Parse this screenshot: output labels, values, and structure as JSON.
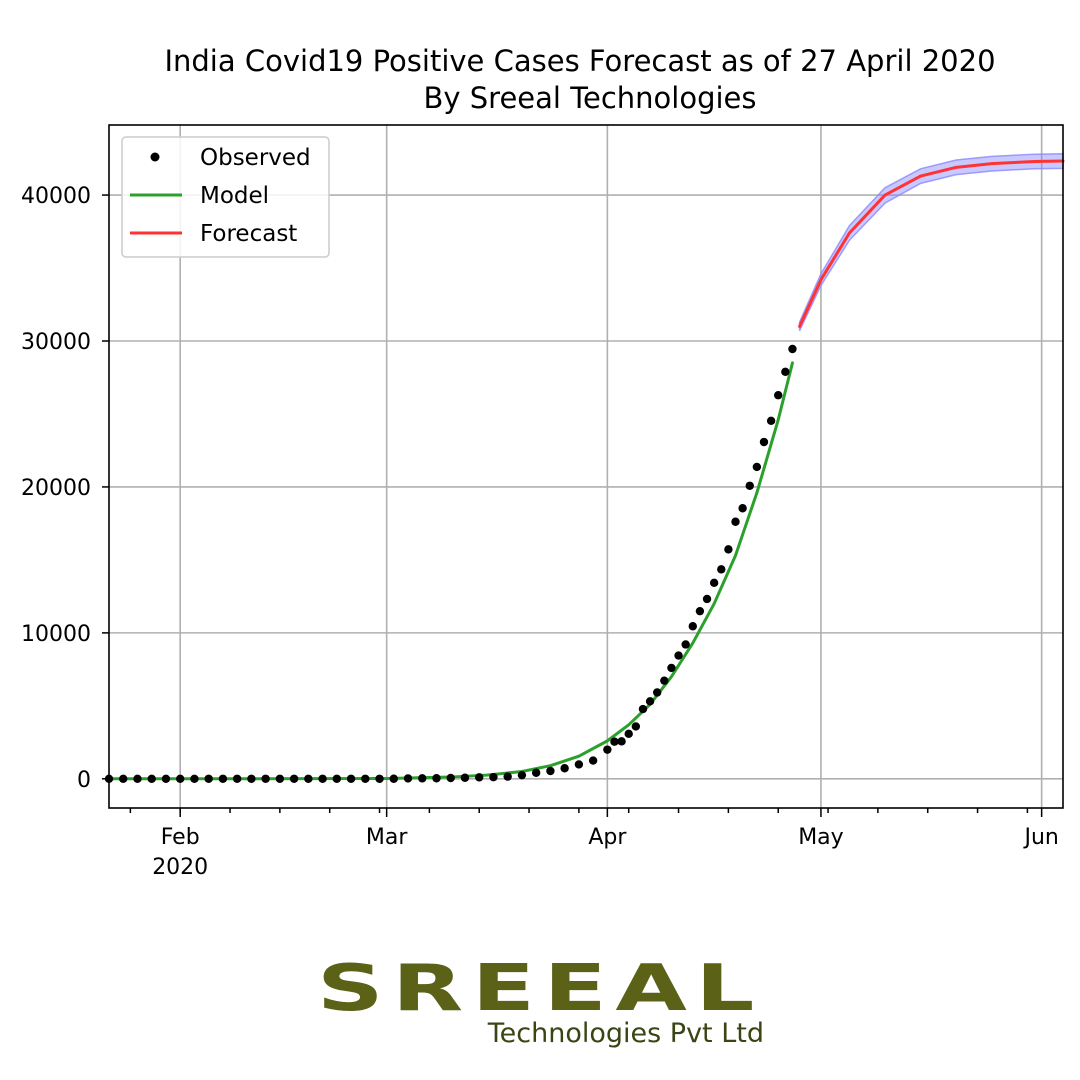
{
  "chart_data": {
    "type": "line",
    "title": "India Covid19 Positive Cases Forecast as of 27 April 2020",
    "subtitle": "By Sreeal Technologies",
    "xlabel": "",
    "ylabel": "",
    "x_range": [
      "2020-01-22",
      "2020-06-04"
    ],
    "ylim": [
      -2000,
      44800
    ],
    "x_ticks": [
      {
        "date": "2020-02-01",
        "label": "Feb",
        "sublabel": "2020"
      },
      {
        "date": "2020-03-01",
        "label": "Mar",
        "sublabel": ""
      },
      {
        "date": "2020-04-01",
        "label": "Apr",
        "sublabel": ""
      },
      {
        "date": "2020-05-01",
        "label": "May",
        "sublabel": ""
      },
      {
        "date": "2020-06-01",
        "label": "Jun",
        "sublabel": ""
      }
    ],
    "y_ticks": [
      0,
      10000,
      20000,
      30000,
      40000
    ],
    "y_tick_labels": [
      "0",
      "10000",
      "20000",
      "30000",
      "40000"
    ],
    "grid": true,
    "legend": {
      "position": "top-left",
      "entries": [
        {
          "label": "Observed",
          "marker": "dot",
          "color": "#000000"
        },
        {
          "label": "Model",
          "marker": "line",
          "color": "#2ca02c"
        },
        {
          "label": "Forecast",
          "marker": "line",
          "color": "#ff3333"
        }
      ]
    },
    "series": [
      {
        "name": "Observed",
        "kind": "scatter",
        "color": "#000000",
        "points": [
          [
            "2020-01-22",
            0
          ],
          [
            "2020-01-24",
            0
          ],
          [
            "2020-01-26",
            0
          ],
          [
            "2020-01-28",
            0
          ],
          [
            "2020-01-30",
            1
          ],
          [
            "2020-02-01",
            1
          ],
          [
            "2020-02-03",
            2
          ],
          [
            "2020-02-05",
            3
          ],
          [
            "2020-02-07",
            3
          ],
          [
            "2020-02-09",
            3
          ],
          [
            "2020-02-11",
            3
          ],
          [
            "2020-02-13",
            3
          ],
          [
            "2020-02-15",
            3
          ],
          [
            "2020-02-17",
            3
          ],
          [
            "2020-02-19",
            3
          ],
          [
            "2020-02-21",
            3
          ],
          [
            "2020-02-23",
            3
          ],
          [
            "2020-02-25",
            3
          ],
          [
            "2020-02-27",
            3
          ],
          [
            "2020-02-29",
            3
          ],
          [
            "2020-03-02",
            5
          ],
          [
            "2020-03-04",
            28
          ],
          [
            "2020-03-06",
            31
          ],
          [
            "2020-03-08",
            39
          ],
          [
            "2020-03-10",
            56
          ],
          [
            "2020-03-12",
            73
          ],
          [
            "2020-03-14",
            100
          ],
          [
            "2020-03-16",
            114
          ],
          [
            "2020-03-18",
            151
          ],
          [
            "2020-03-20",
            249
          ],
          [
            "2020-03-22",
            415
          ],
          [
            "2020-03-24",
            536
          ],
          [
            "2020-03-26",
            724
          ],
          [
            "2020-03-28",
            987
          ],
          [
            "2020-03-30",
            1251
          ],
          [
            "2020-04-01",
            1998
          ],
          [
            "2020-04-02",
            2543
          ],
          [
            "2020-04-03",
            2567
          ],
          [
            "2020-04-04",
            3082
          ],
          [
            "2020-04-05",
            3588
          ],
          [
            "2020-04-06",
            4778
          ],
          [
            "2020-04-07",
            5311
          ],
          [
            "2020-04-08",
            5916
          ],
          [
            "2020-04-09",
            6725
          ],
          [
            "2020-04-10",
            7598
          ],
          [
            "2020-04-11",
            8446
          ],
          [
            "2020-04-12",
            9205
          ],
          [
            "2020-04-13",
            10453
          ],
          [
            "2020-04-14",
            11487
          ],
          [
            "2020-04-15",
            12322
          ],
          [
            "2020-04-16",
            13430
          ],
          [
            "2020-04-17",
            14352
          ],
          [
            "2020-04-18",
            15722
          ],
          [
            "2020-04-19",
            17615
          ],
          [
            "2020-04-20",
            18539
          ],
          [
            "2020-04-21",
            20080
          ],
          [
            "2020-04-22",
            21370
          ],
          [
            "2020-04-23",
            23077
          ],
          [
            "2020-04-24",
            24530
          ],
          [
            "2020-04-25",
            26283
          ],
          [
            "2020-04-26",
            27890
          ],
          [
            "2020-04-27",
            29451
          ]
        ]
      },
      {
        "name": "Model",
        "kind": "line",
        "color": "#2ca02c",
        "points": [
          [
            "2020-01-22",
            0
          ],
          [
            "2020-02-10",
            0
          ],
          [
            "2020-03-01",
            20
          ],
          [
            "2020-03-10",
            120
          ],
          [
            "2020-03-15",
            250
          ],
          [
            "2020-03-20",
            500
          ],
          [
            "2020-03-24",
            900
          ],
          [
            "2020-03-28",
            1550
          ],
          [
            "2020-04-01",
            2600
          ],
          [
            "2020-04-04",
            3700
          ],
          [
            "2020-04-07",
            5100
          ],
          [
            "2020-04-10",
            7000
          ],
          [
            "2020-04-13",
            9300
          ],
          [
            "2020-04-16",
            12000
          ],
          [
            "2020-04-19",
            15300
          ],
          [
            "2020-04-22",
            19600
          ],
          [
            "2020-04-25",
            24600
          ],
          [
            "2020-04-27",
            28500
          ]
        ]
      },
      {
        "name": "Forecast",
        "kind": "line",
        "color": "#ff3333",
        "points": [
          [
            "2020-04-28",
            31000
          ],
          [
            "2020-05-01",
            34200
          ],
          [
            "2020-05-05",
            37400
          ],
          [
            "2020-05-10",
            40000
          ],
          [
            "2020-05-15",
            41300
          ],
          [
            "2020-05-20",
            41900
          ],
          [
            "2020-05-25",
            42150
          ],
          [
            "2020-05-31",
            42300
          ],
          [
            "2020-06-04",
            42330
          ]
        ]
      },
      {
        "name": "Forecast interval",
        "kind": "band",
        "color": "#8888ff",
        "points": [
          [
            "2020-04-28",
            30700,
            31300
          ],
          [
            "2020-05-01",
            33800,
            34600
          ],
          [
            "2020-05-05",
            36900,
            37900
          ],
          [
            "2020-05-10",
            39450,
            40500
          ],
          [
            "2020-05-15",
            40800,
            41800
          ],
          [
            "2020-05-20",
            41400,
            42400
          ],
          [
            "2020-05-25",
            41650,
            42650
          ],
          [
            "2020-05-31",
            41800,
            42800
          ],
          [
            "2020-06-04",
            41830,
            42830
          ]
        ]
      }
    ]
  },
  "logo": {
    "wordmark": "SREEAL",
    "tagline": "Technologies Pvt Ltd",
    "color": "#5b6218"
  }
}
